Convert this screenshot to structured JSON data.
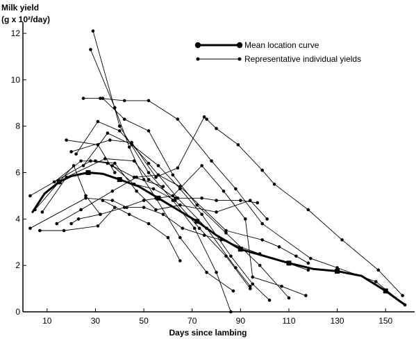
{
  "chart_data": {
    "type": "line",
    "ylabel_line1": "Milk yield",
    "ylabel_line2": "(g x 10²/day)",
    "xlabel": "Days since lambing",
    "xlim": [
      0,
      162
    ],
    "ylim": [
      0,
      12.3
    ],
    "xticks": [
      10,
      30,
      50,
      70,
      90,
      110,
      130,
      150
    ],
    "yticks": [
      0,
      2,
      4,
      6,
      8,
      10,
      12
    ],
    "grid": false,
    "legend_position": "top-right",
    "legend": [
      {
        "label": "Mean location curve",
        "style": "mean"
      },
      {
        "label": "Representative individual yields",
        "style": "individual"
      }
    ],
    "series": [
      {
        "style": "mean",
        "x": [
          4,
          9,
          15,
          20,
          27,
          33,
          40,
          48,
          56,
          64,
          72,
          80,
          90,
          100,
          110,
          120,
          130,
          140,
          150,
          158
        ],
        "y": [
          4.3,
          5.1,
          5.6,
          5.85,
          6.0,
          5.95,
          5.7,
          5.4,
          4.9,
          4.4,
          3.9,
          3.3,
          2.7,
          2.4,
          2.1,
          1.85,
          1.75,
          1.55,
          0.9,
          0.3
        ]
      },
      {
        "style": "individual",
        "x": [
          3,
          28,
          35,
          46,
          58
        ],
        "y": [
          5.0,
          6.5,
          6.4,
          5.8,
          5.4
        ]
      },
      {
        "style": "individual",
        "x": [
          3,
          26,
          37,
          43,
          50,
          58,
          66,
          75,
          82,
          98,
          118
        ],
        "y": [
          3.6,
          4.9,
          4.8,
          4.5,
          4.5,
          4.2,
          3.6,
          3.3,
          3.1,
          2.5,
          1.8
        ]
      },
      {
        "style": "individual",
        "x": [
          7,
          17,
          31,
          38
        ],
        "y": [
          3.5,
          3.5,
          3.7,
          4.5
        ]
      },
      {
        "style": "individual",
        "x": [
          5,
          15,
          21,
          26,
          32
        ],
        "y": [
          4.4,
          5.6,
          6.3,
          5.0,
          4.2
        ]
      },
      {
        "style": "individual",
        "x": [
          20,
          23,
          32,
          42,
          50,
          62,
          74,
          83,
          92,
          95,
          107,
          117
        ],
        "y": [
          3.8,
          4.0,
          4.2,
          4.5,
          4.8,
          5.0,
          6.3,
          5.2,
          4.0,
          1.5,
          1.1,
          0.7
        ]
      },
      {
        "style": "individual",
        "x": [
          14,
          24,
          37,
          47,
          56,
          65,
          84,
          99,
          106,
          113,
          118
        ],
        "y": [
          3.8,
          4.4,
          5.2,
          5.8,
          5.9,
          5.4,
          3.5,
          3.1,
          2.8,
          2.4,
          2.1
        ]
      },
      {
        "style": "individual",
        "x": [
          8,
          18,
          34,
          46,
          52,
          63,
          74,
          80,
          90,
          97
        ],
        "y": [
          4.3,
          5.8,
          6.6,
          6.5,
          5.7,
          4.9,
          4.9,
          4.8,
          4.8,
          4.7
        ]
      },
      {
        "style": "individual",
        "x": [
          13,
          24,
          30,
          38,
          47,
          55,
          65,
          80,
          94,
          101
        ],
        "y": [
          5.6,
          6.5,
          6.5,
          6.4,
          5.2,
          4.4,
          4.6,
          4.3,
          4.8,
          4.0
        ]
      },
      {
        "style": "individual",
        "x": [
          18,
          31,
          38
        ],
        "y": [
          7.4,
          7.2,
          6.0
        ]
      },
      {
        "style": "individual",
        "x": [
          25,
          32,
          42,
          52,
          64,
          78,
          88,
          99,
          119,
          130,
          146,
          158
        ],
        "y": [
          9.2,
          9.2,
          9.1,
          9.1,
          8.3,
          6.5,
          5.3,
          3.8,
          2.3,
          1.9,
          1.3,
          0.3
        ]
      },
      {
        "style": "individual",
        "x": [
          20,
          36,
          45,
          55,
          64,
          75,
          76,
          80,
          89,
          99,
          104,
          118,
          132,
          147,
          157
        ],
        "y": [
          6.9,
          7.4,
          7.3,
          5.8,
          6.2,
          8.4,
          8.3,
          7.9,
          7.2,
          6.1,
          5.5,
          4.4,
          3.1,
          1.8,
          0.7
        ]
      },
      {
        "style": "individual",
        "x": [
          28,
          38,
          44,
          50,
          55,
          65,
          76,
          87
        ],
        "y": [
          11.3,
          8.8,
          7.1,
          5.7,
          4.9,
          3.2,
          1.7,
          0.9
        ]
      },
      {
        "style": "individual",
        "x": [
          29,
          40,
          52,
          62,
          71,
          80,
          86
        ],
        "y": [
          12.1,
          8.0,
          6.0,
          4.8,
          3.6,
          1.7,
          0.0
        ]
      },
      {
        "style": "individual",
        "x": [
          25,
          35,
          45,
          56,
          65,
          74,
          86,
          95,
          102
        ],
        "y": [
          6.3,
          7.7,
          7.2,
          6.3,
          5.3,
          4.2,
          2.4,
          1.2,
          0.5
        ]
      },
      {
        "style": "individual",
        "x": [
          22,
          31,
          40,
          52,
          64,
          76,
          88,
          94
        ],
        "y": [
          6.8,
          8.2,
          7.8,
          6.4,
          4.9,
          3.6,
          1.9,
          1.1
        ]
      },
      {
        "style": "individual",
        "x": [
          33,
          42,
          52,
          62,
          72,
          84,
          98,
          110
        ],
        "y": [
          9.2,
          8.3,
          7.8,
          5.9,
          4.6,
          3.4,
          2.0,
          0.6
        ]
      },
      {
        "style": "individual",
        "x": [
          33,
          44,
          52,
          60,
          65
        ],
        "y": [
          4.8,
          4.2,
          3.8,
          3.2,
          2.2
        ]
      },
      {
        "style": "individual",
        "x": [
          37,
          46,
          54,
          63,
          73,
          84,
          94
        ],
        "y": [
          6.3,
          5.5,
          5.3,
          4.8,
          3.6,
          2.4,
          1.0
        ]
      }
    ]
  }
}
